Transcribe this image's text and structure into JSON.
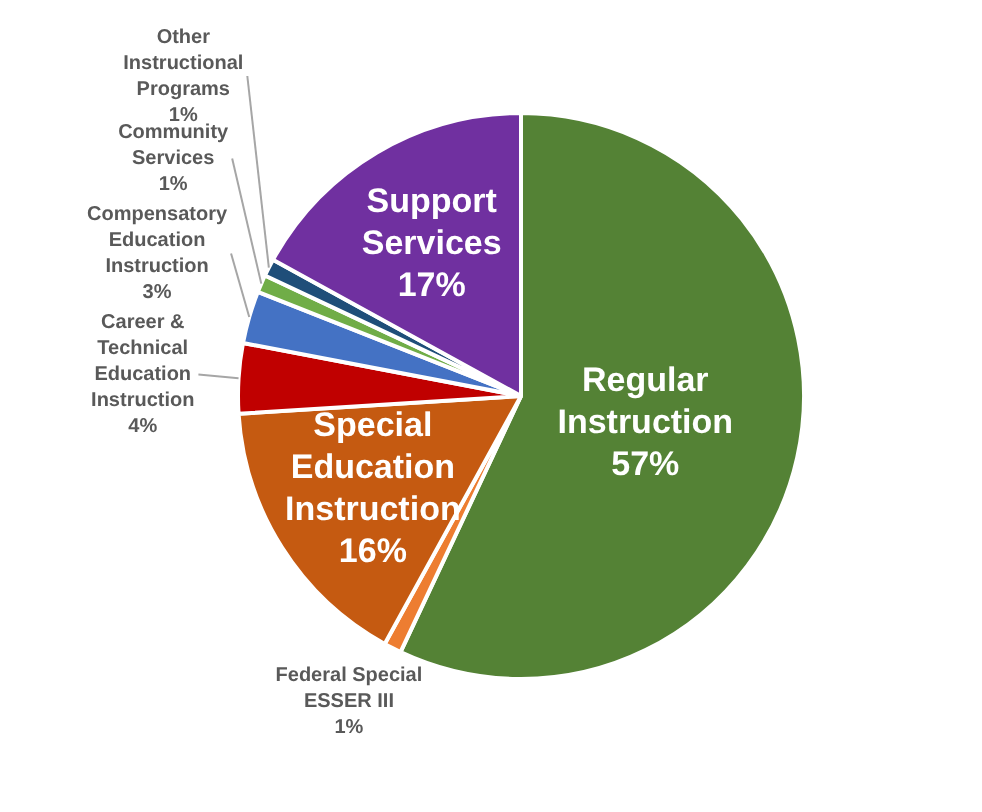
{
  "chart_data": {
    "type": "pie",
    "categories": [
      "Regular Instruction",
      "Federal Special ESSER III",
      "Special Education Instruction",
      "Career & Technical Education Instruction",
      "Compensatory Education Instruction",
      "Community Services",
      "Other Instructional Programs",
      "Support Services"
    ],
    "values": [
      57,
      1,
      16,
      4,
      3,
      1,
      1,
      17
    ],
    "value_labels": [
      "57%",
      "1%",
      "16%",
      "4%",
      "3%",
      "1%",
      "1%",
      "17%"
    ],
    "colors": [
      "#548235",
      "#ed7d31",
      "#c55a11",
      "#c00000",
      "#4472c4",
      "#70ad47",
      "#1f4e79",
      "#7030a0"
    ],
    "legend": false
  }
}
